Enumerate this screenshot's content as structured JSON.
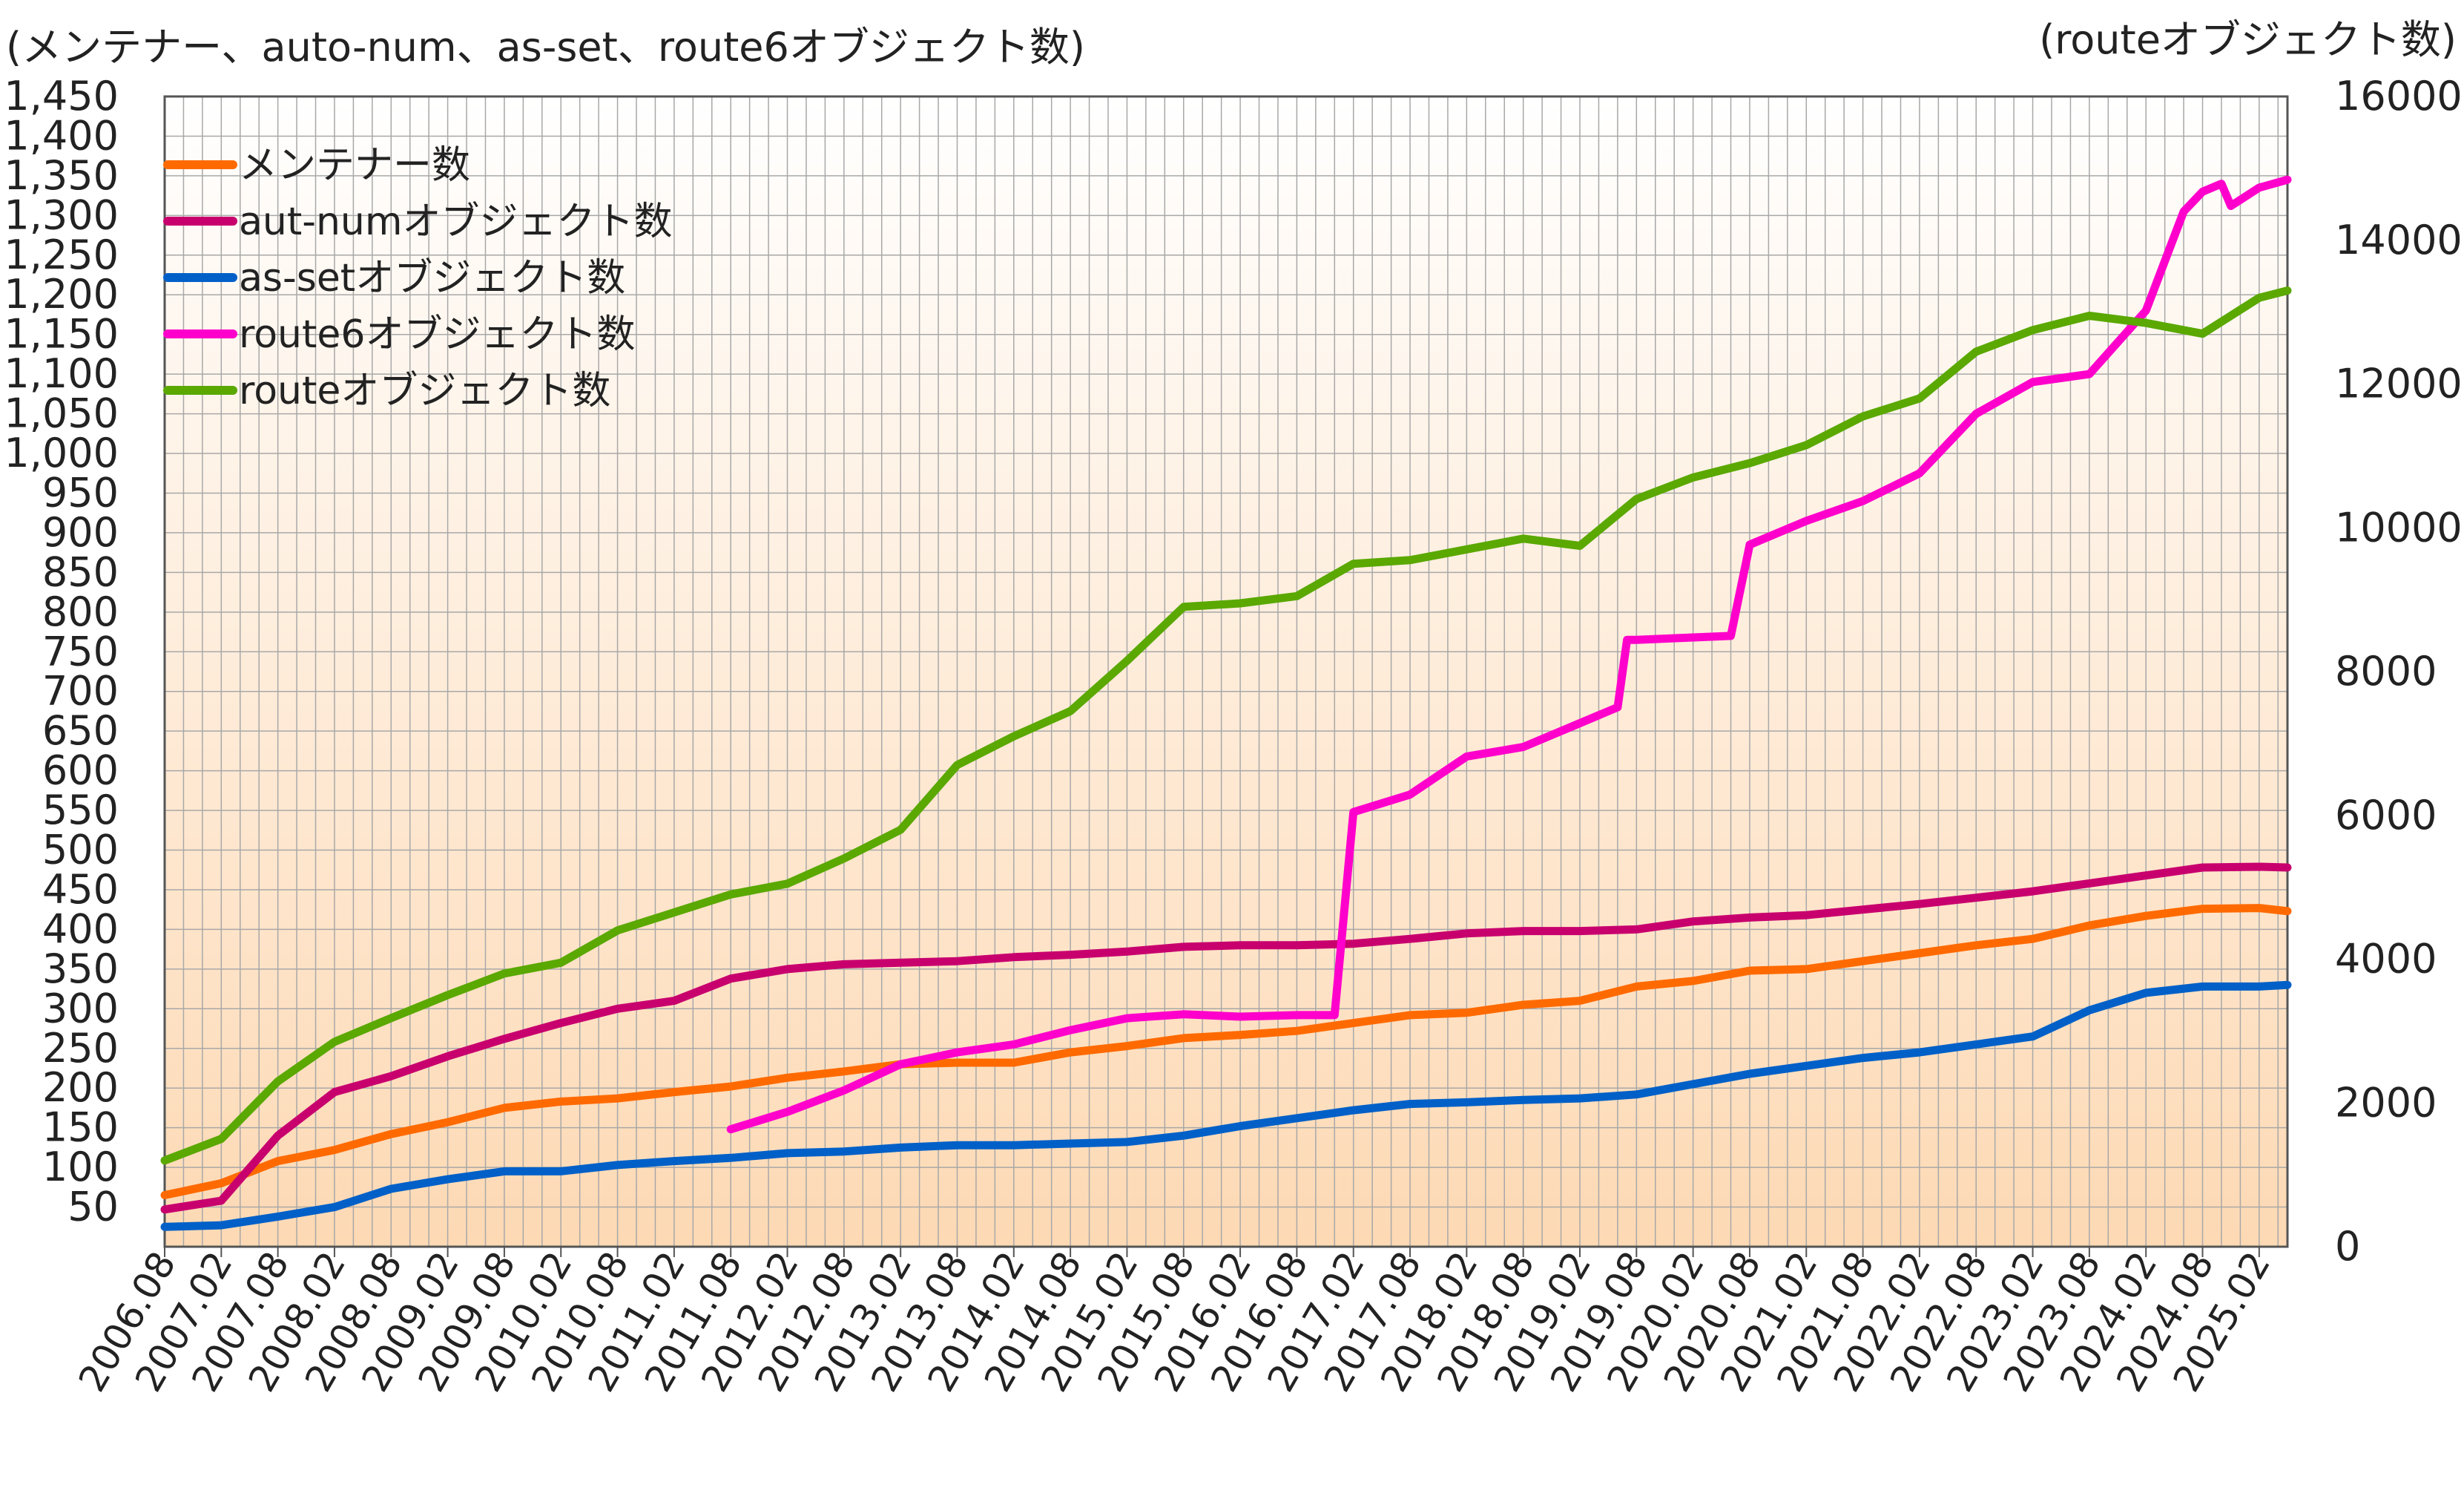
{
  "chart_data": {
    "type": "line",
    "left_axis_title": "(メンテナー、auto-num、as-set、route6オブジェクト数)",
    "right_axis_title": "(routeオブジェクト数)",
    "left_ylim": [
      0,
      1450
    ],
    "right_ylim": [
      0,
      16000
    ],
    "left_ticks": [
      "50",
      "100",
      "150",
      "200",
      "250",
      "300",
      "350",
      "400",
      "450",
      "500",
      "550",
      "600",
      "650",
      "700",
      "750",
      "800",
      "850",
      "900",
      "950",
      "1,000",
      "1,050",
      "1,100",
      "1,150",
      "1,200",
      "1,250",
      "1,300",
      "1,350",
      "1,400",
      "1,450"
    ],
    "right_ticks": [
      "0",
      "2000",
      "4000",
      "6000",
      "8000",
      "10000",
      "12000",
      "14000",
      "16000"
    ],
    "x_tick_labels": [
      "2006.08",
      "2007.02",
      "2007.08",
      "2008.02",
      "2008.08",
      "2009.02",
      "2009.08",
      "2010.02",
      "2010.08",
      "2011.02",
      "2011.08",
      "2012.02",
      "2012.08",
      "2013.02",
      "2013.08",
      "2014.02",
      "2014.08",
      "2015.02",
      "2015.08",
      "2016.02",
      "2016.08",
      "2017.02",
      "2017.08",
      "2018.02",
      "2018.08",
      "2019.02",
      "2019.08",
      "2020.02",
      "2020.08",
      "2021.02",
      "2021.08",
      "2022.02",
      "2022.08",
      "2023.02",
      "2023.08",
      "2024.02",
      "2024.08",
      "2025.02"
    ],
    "x_range": [
      "2006.08",
      "2025.05"
    ],
    "grid": true,
    "legend_position": "top-left",
    "series": [
      {
        "name": "メンテナー数",
        "axis": "left",
        "color": "#ff6a00",
        "x": [
          "2006.08",
          "2007.02",
          "2007.08",
          "2008.02",
          "2008.08",
          "2009.02",
          "2009.08",
          "2010.02",
          "2010.08",
          "2011.02",
          "2011.08",
          "2012.02",
          "2012.08",
          "2013.02",
          "2013.08",
          "2014.02",
          "2014.08",
          "2015.02",
          "2015.08",
          "2016.02",
          "2016.08",
          "2017.02",
          "2017.08",
          "2018.02",
          "2018.08",
          "2019.02",
          "2019.08",
          "2020.02",
          "2020.08",
          "2021.02",
          "2021.08",
          "2022.02",
          "2022.08",
          "2023.02",
          "2023.08",
          "2024.02",
          "2024.08",
          "2025.02",
          "2025.05"
        ],
        "values": [
          65,
          80,
          108,
          122,
          142,
          157,
          175,
          183,
          187,
          195,
          202,
          213,
          221,
          230,
          232,
          232,
          245,
          253,
          263,
          267,
          272,
          282,
          292,
          295,
          305,
          310,
          328,
          335,
          348,
          350,
          360,
          370,
          380,
          388,
          405,
          417,
          426,
          427,
          423
        ]
      },
      {
        "name": "aut-numオブジェクト数",
        "axis": "left",
        "color": "#c8006e",
        "x": [
          "2006.08",
          "2007.02",
          "2007.08",
          "2008.02",
          "2008.08",
          "2009.02",
          "2009.08",
          "2010.02",
          "2010.08",
          "2011.02",
          "2011.08",
          "2012.02",
          "2012.08",
          "2013.02",
          "2013.08",
          "2014.02",
          "2014.08",
          "2015.02",
          "2015.08",
          "2016.02",
          "2016.08",
          "2017.02",
          "2017.08",
          "2018.02",
          "2018.08",
          "2019.02",
          "2019.08",
          "2020.02",
          "2020.08",
          "2021.02",
          "2021.08",
          "2022.02",
          "2022.08",
          "2023.02",
          "2023.08",
          "2024.02",
          "2024.08",
          "2025.02",
          "2025.05"
        ],
        "values": [
          47,
          58,
          140,
          195,
          215,
          240,
          262,
          282,
          300,
          310,
          338,
          350,
          356,
          358,
          360,
          365,
          368,
          372,
          378,
          380,
          380,
          382,
          388,
          395,
          398,
          398,
          400,
          410,
          415,
          418,
          425,
          432,
          440,
          448,
          458,
          468,
          478,
          479,
          478
        ]
      },
      {
        "name": "as-setオブジェクト数",
        "axis": "left",
        "color": "#0060c8",
        "x": [
          "2006.08",
          "2007.02",
          "2007.08",
          "2008.02",
          "2008.08",
          "2009.02",
          "2009.08",
          "2010.02",
          "2010.08",
          "2011.02",
          "2011.08",
          "2012.02",
          "2012.08",
          "2013.02",
          "2013.08",
          "2014.02",
          "2014.08",
          "2015.02",
          "2015.08",
          "2016.02",
          "2016.08",
          "2017.02",
          "2017.08",
          "2018.02",
          "2018.08",
          "2019.02",
          "2019.08",
          "2020.02",
          "2020.08",
          "2021.02",
          "2021.08",
          "2022.02",
          "2022.08",
          "2023.02",
          "2023.08",
          "2024.02",
          "2024.08",
          "2025.02",
          "2025.05"
        ],
        "values": [
          25,
          27,
          38,
          50,
          73,
          85,
          95,
          95,
          103,
          108,
          112,
          118,
          120,
          125,
          128,
          128,
          130,
          132,
          140,
          152,
          162,
          172,
          180,
          182,
          185,
          187,
          192,
          205,
          218,
          228,
          238,
          245,
          255,
          265,
          298,
          320,
          328,
          328,
          330
        ]
      },
      {
        "name": "route6オブジェクト数",
        "axis": "left",
        "color": "#ff00cc",
        "x": [
          "2011.08",
          "2012.02",
          "2012.08",
          "2013.02",
          "2013.08",
          "2014.02",
          "2014.08",
          "2015.02",
          "2015.08",
          "2016.02",
          "2016.08",
          "2016.10",
          "2016.12",
          "2017.02",
          "2017.08",
          "2018.02",
          "2018.08",
          "2019.02",
          "2019.06",
          "2019.07",
          "2019.08",
          "2020.02",
          "2020.06",
          "2020.08",
          "2021.02",
          "2021.08",
          "2022.02",
          "2022.08",
          "2023.02",
          "2023.08",
          "2024.02",
          "2024.06",
          "2024.08",
          "2024.10",
          "2024.11",
          "2025.02",
          "2025.05"
        ],
        "values": [
          148,
          170,
          197,
          230,
          245,
          255,
          273,
          288,
          293,
          290,
          292,
          292,
          292,
          548,
          570,
          618,
          630,
          660,
          680,
          765,
          765,
          768,
          770,
          885,
          915,
          940,
          975,
          1050,
          1090,
          1100,
          1180,
          1305,
          1330,
          1340,
          1312,
          1335,
          1345
        ]
      },
      {
        "name": "routeオブジェクト数",
        "axis": "right",
        "color": "#5aa800",
        "x": [
          "2006.08",
          "2007.02",
          "2007.08",
          "2008.02",
          "2008.08",
          "2009.02",
          "2009.08",
          "2010.02",
          "2010.08",
          "2011.02",
          "2011.08",
          "2012.02",
          "2012.08",
          "2013.02",
          "2013.08",
          "2014.02",
          "2014.08",
          "2015.02",
          "2015.08",
          "2016.02",
          "2016.08",
          "2017.02",
          "2017.08",
          "2018.02",
          "2018.08",
          "2019.02",
          "2019.08",
          "2020.02",
          "2020.08",
          "2021.02",
          "2021.08",
          "2022.02",
          "2022.08",
          "2023.02",
          "2023.08",
          "2024.02",
          "2024.08",
          "2025.02",
          "2025.05"
        ],
        "values": [
          1200,
          1500,
          2300,
          2850,
          3180,
          3500,
          3800,
          3950,
          4400,
          4650,
          4900,
          5050,
          5400,
          5800,
          6700,
          7100,
          7450,
          8150,
          8900,
          8950,
          9050,
          9500,
          9550,
          9700,
          9850,
          9750,
          10400,
          10700,
          10900,
          11150,
          11550,
          11800,
          12450,
          12750,
          12950,
          12850,
          12700,
          13200,
          13300
        ]
      }
    ]
  }
}
